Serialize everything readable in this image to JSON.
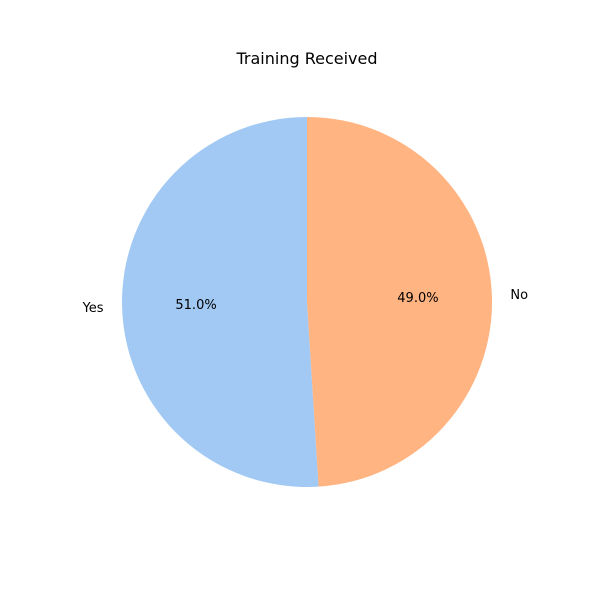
{
  "chart_data": {
    "type": "pie",
    "title": "Training Received",
    "categories": [
      "Yes",
      "No"
    ],
    "values": [
      51.0,
      49.0
    ],
    "value_labels": [
      "51.0%",
      "49.0%"
    ],
    "colors": [
      "#a1c9f4",
      "#ffb482"
    ],
    "start_angle_deg": 90,
    "direction": "counterclockwise",
    "legend": "none"
  }
}
